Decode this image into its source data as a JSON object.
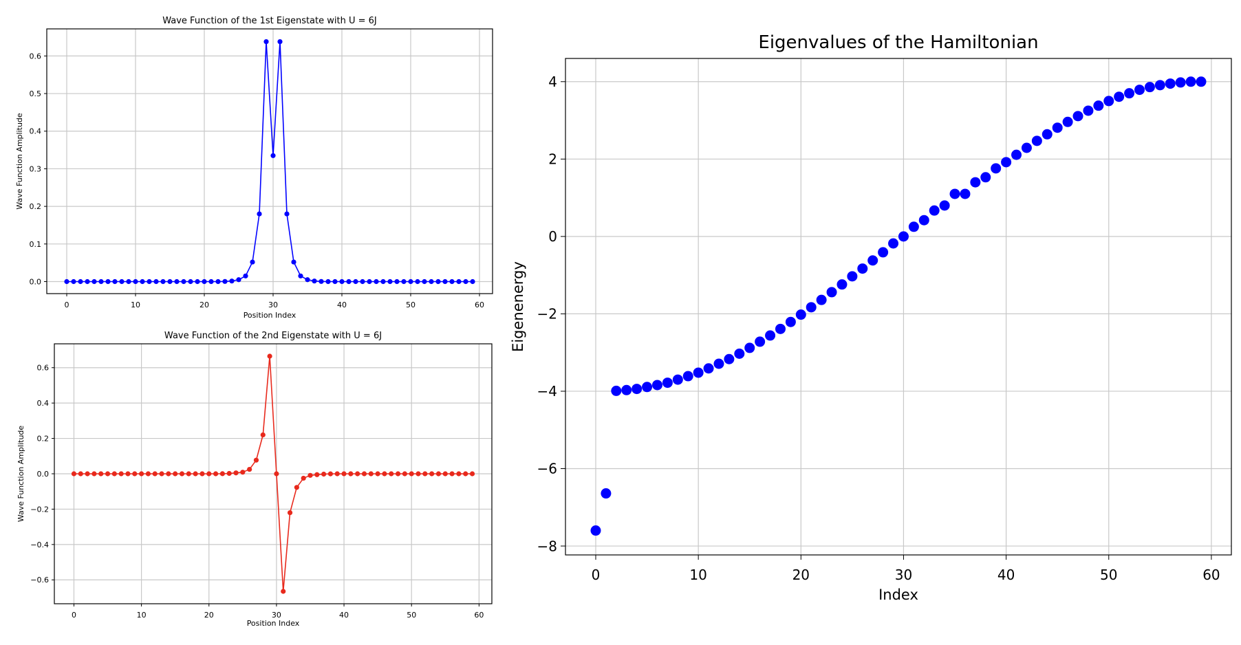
{
  "chart_data": [
    {
      "type": "line",
      "title": "Wave Function of the 1st Eigenstate with U = 6J",
      "xlabel": "Position Index",
      "ylabel": "Wave Function Amplitude",
      "xlim": [
        -2.9,
        61.9
      ],
      "ylim": [
        -0.032,
        0.672
      ],
      "xticks": [
        "0",
        "10",
        "20",
        "30",
        "40",
        "50",
        "60"
      ],
      "yticks": [
        "0.0",
        "0.1",
        "0.2",
        "0.3",
        "0.4",
        "0.5",
        "0.6"
      ],
      "xtick_values": [
        0,
        10,
        20,
        30,
        40,
        50,
        60
      ],
      "ytick_values": [
        0.0,
        0.1,
        0.2,
        0.3,
        0.4,
        0.5,
        0.6
      ],
      "grid": true,
      "color": "#0000ff",
      "x": [
        0,
        1,
        2,
        3,
        4,
        5,
        6,
        7,
        8,
        9,
        10,
        11,
        12,
        13,
        14,
        15,
        16,
        17,
        18,
        19,
        20,
        21,
        22,
        23,
        24,
        25,
        26,
        27,
        28,
        29,
        30,
        31,
        32,
        33,
        34,
        35,
        36,
        37,
        38,
        39,
        40,
        41,
        42,
        43,
        44,
        45,
        46,
        47,
        48,
        49,
        50,
        51,
        52,
        53,
        54,
        55,
        56,
        57,
        58,
        59
      ],
      "y": [
        0,
        0,
        0,
        0,
        0,
        0,
        0,
        0,
        0,
        0,
        0,
        0,
        0,
        0,
        0,
        0,
        0,
        0,
        0,
        0,
        0,
        0,
        0,
        0.0003,
        0.0015,
        0.005,
        0.015,
        0.052,
        0.18,
        0.638,
        0.335,
        0.638,
        0.18,
        0.052,
        0.015,
        0.005,
        0.0015,
        0.0003,
        0,
        0,
        0,
        0,
        0,
        0,
        0,
        0,
        0,
        0,
        0,
        0,
        0,
        0,
        0,
        0,
        0,
        0,
        0,
        0,
        0,
        0
      ]
    },
    {
      "type": "line",
      "title": "Wave Function of the 2nd Eigenstate with U = 6J",
      "xlabel": "Position Index",
      "ylabel": "Wave Function Amplitude",
      "xlim": [
        -2.9,
        61.9
      ],
      "ylim": [
        -0.735,
        0.735
      ],
      "xticks": [
        "0",
        "10",
        "20",
        "30",
        "40",
        "50",
        "60"
      ],
      "yticks": [
        "−0.6",
        "−0.4",
        "−0.2",
        "0.0",
        "0.2",
        "0.4",
        "0.6"
      ],
      "xtick_values": [
        0,
        10,
        20,
        30,
        40,
        50,
        60
      ],
      "ytick_values": [
        -0.6,
        -0.4,
        -0.2,
        0.0,
        0.2,
        0.4,
        0.6
      ],
      "grid": true,
      "color": "#e8291c",
      "x": [
        0,
        1,
        2,
        3,
        4,
        5,
        6,
        7,
        8,
        9,
        10,
        11,
        12,
        13,
        14,
        15,
        16,
        17,
        18,
        19,
        20,
        21,
        22,
        23,
        24,
        25,
        26,
        27,
        28,
        29,
        30,
        31,
        32,
        33,
        34,
        35,
        36,
        37,
        38,
        39,
        40,
        41,
        42,
        43,
        44,
        45,
        46,
        47,
        48,
        49,
        50,
        51,
        52,
        53,
        54,
        55,
        56,
        57,
        58,
        59
      ],
      "y": [
        0,
        0,
        0,
        0,
        0,
        0,
        0,
        0,
        0,
        0,
        0,
        0,
        0,
        0,
        0,
        0,
        0,
        0,
        0,
        0,
        0,
        0,
        0.0005,
        0.002,
        0.005,
        0.009,
        0.025,
        0.077,
        0.22,
        0.665,
        0,
        -0.665,
        -0.22,
        -0.077,
        -0.025,
        -0.009,
        -0.005,
        -0.002,
        -0.0005,
        0,
        0,
        0,
        0,
        0,
        0,
        0,
        0,
        0,
        0,
        0,
        0,
        0,
        0,
        0,
        0,
        0,
        0,
        0,
        0,
        0
      ]
    },
    {
      "type": "scatter",
      "title": "Eigenvalues of the Hamiltonian",
      "xlabel": "Index",
      "ylabel": "Eigenenergy",
      "xlim": [
        -2.95,
        61.95
      ],
      "ylim": [
        -8.23,
        4.6
      ],
      "xticks": [
        "0",
        "10",
        "20",
        "30",
        "40",
        "50",
        "60"
      ],
      "yticks": [
        "−8",
        "−6",
        "−4",
        "−2",
        "0",
        "2",
        "4"
      ],
      "xtick_values": [
        0,
        10,
        20,
        30,
        40,
        50,
        60
      ],
      "ytick_values": [
        -8,
        -6,
        -4,
        -2,
        0,
        2,
        4
      ],
      "grid": true,
      "color": "#0000ff",
      "x": [
        0,
        1,
        2,
        3,
        4,
        5,
        6,
        7,
        8,
        9,
        10,
        11,
        12,
        13,
        14,
        15,
        16,
        17,
        18,
        19,
        20,
        21,
        22,
        23,
        24,
        25,
        26,
        27,
        28,
        29,
        30,
        31,
        32,
        33,
        34,
        35,
        36,
        37,
        38,
        39,
        40,
        41,
        42,
        43,
        44,
        45,
        46,
        47,
        48,
        49,
        50,
        51,
        52,
        53,
        54,
        55,
        56,
        57,
        58,
        59
      ],
      "y": [
        -7.6,
        -6.64,
        -3.99,
        -3.97,
        -3.94,
        -3.89,
        -3.84,
        -3.78,
        -3.7,
        -3.61,
        -3.52,
        -3.41,
        -3.29,
        -3.17,
        -3.03,
        -2.88,
        -2.72,
        -2.56,
        -2.39,
        -2.21,
        -2.02,
        -1.83,
        -1.64,
        -1.44,
        -1.24,
        -1.03,
        -0.83,
        -0.62,
        -0.41,
        -0.18,
        0,
        0.25,
        0.42,
        0.67,
        0.8,
        1.1,
        1.1,
        1.4,
        1.53,
        1.76,
        1.92,
        2.11,
        2.29,
        2.47,
        2.64,
        2.81,
        2.96,
        3.11,
        3.25,
        3.38,
        3.5,
        3.61,
        3.7,
        3.79,
        3.86,
        3.91,
        3.95,
        3.98,
        4.0,
        4.0
      ]
    }
  ]
}
